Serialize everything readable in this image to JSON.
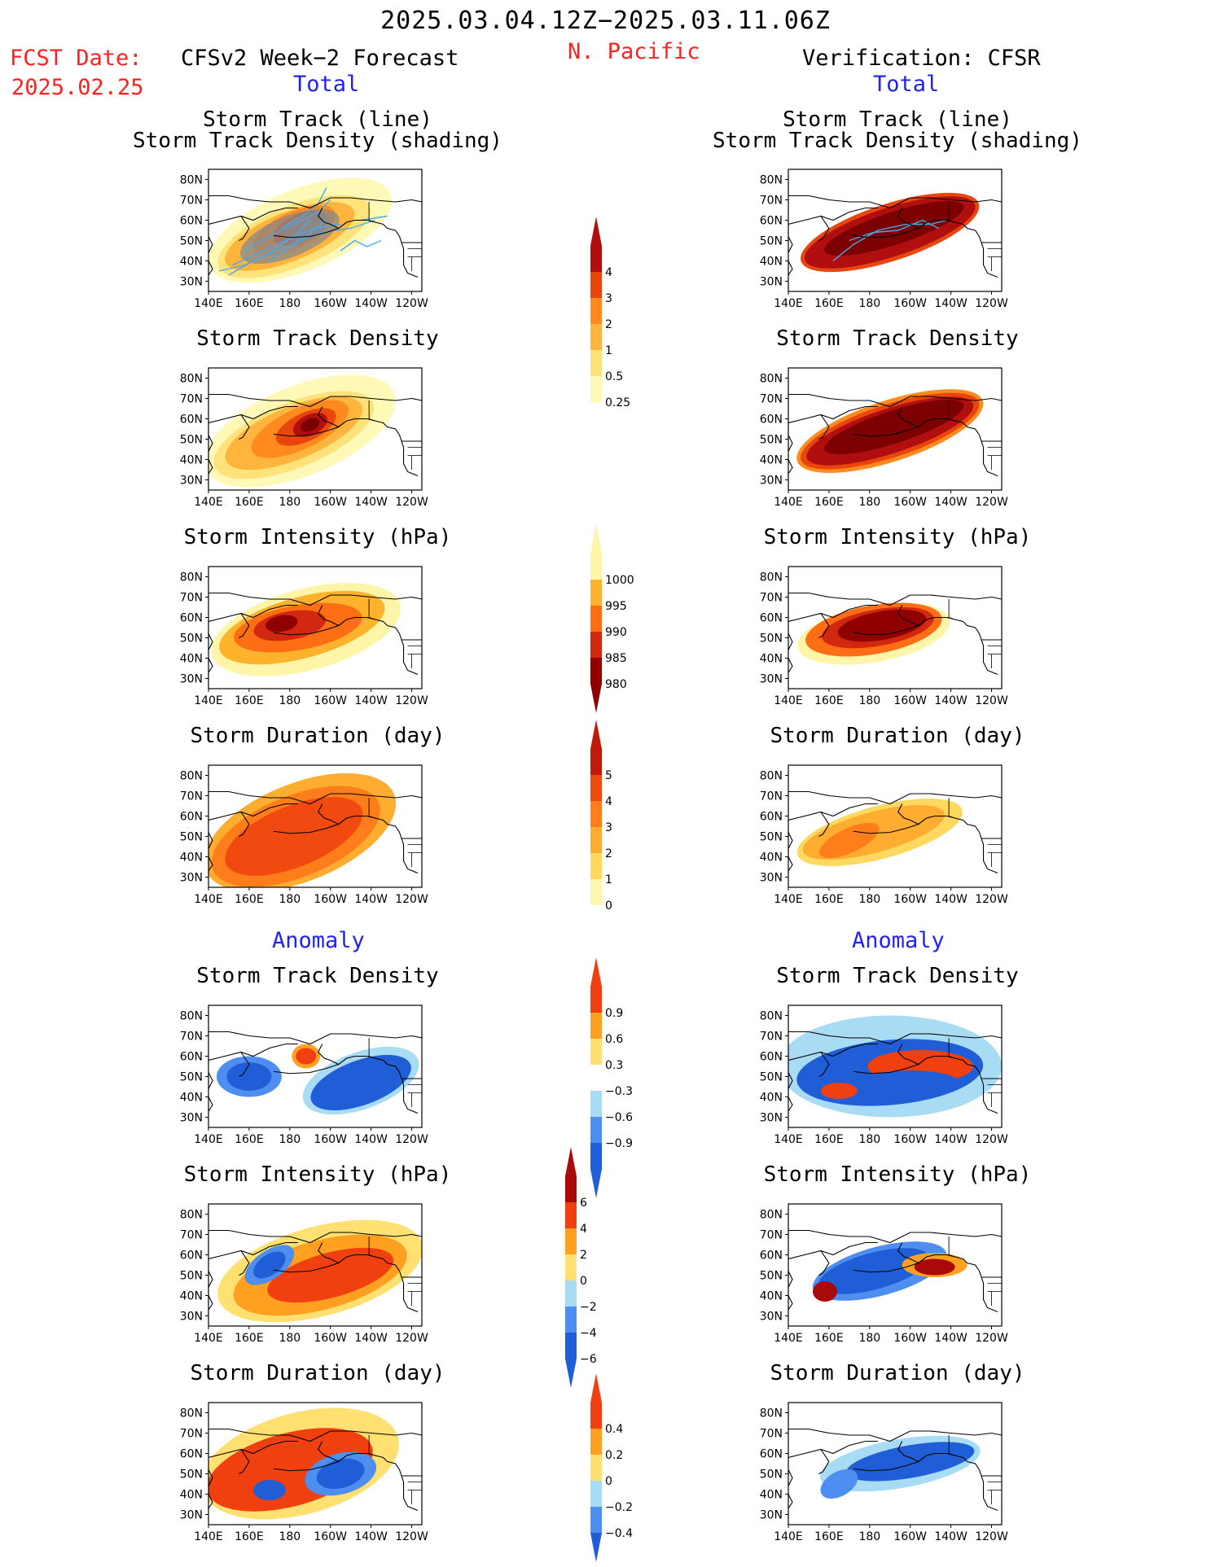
{
  "header": {
    "date_range": "2025.03.04.12Z−2025.03.11.06Z",
    "fcst_label": "FCST Date:",
    "fcst_date": "2025.02.25",
    "left_title": "CFSv2 Week−2 Forecast",
    "region": "N. Pacific",
    "right_title": "Verification: CFSR",
    "total_left": "Total",
    "total_right": "Total",
    "anomaly_left": "Anomaly",
    "anomaly_right": "Anomaly"
  },
  "axes": {
    "lat_ticks": [
      "80N",
      "70N",
      "60N",
      "50N",
      "40N",
      "30N"
    ],
    "lon_ticks": [
      "140E",
      "160E",
      "180",
      "160W",
      "140W",
      "120W"
    ]
  },
  "colors": {
    "density": [
      "#fff9b8",
      "#ffe27a",
      "#ffb43c",
      "#ff8a1e",
      "#e8460c",
      "#b10f0f",
      "#7d0000"
    ],
    "intensity": [
      "#fff5a8",
      "#ffb22c",
      "#ff6e14",
      "#d22810",
      "#900000"
    ],
    "duration": [
      "#fff6b0",
      "#ffd860",
      "#ffad30",
      "#ff7d1a",
      "#f04a10",
      "#c01a0a"
    ],
    "anomaly": [
      "#1f5ed6",
      "#4d8ef0",
      "#a8dcf5",
      "#ffffff",
      "#ffe070",
      "#ffa020",
      "#f04010",
      "#aa0a0a"
    ],
    "track_line": "#4aa8e8",
    "track_shade": "#8a8a8a"
  },
  "panels": {
    "top_left": {
      "title1": "Storm Track (line)",
      "title2": "Storm Track Density (shading)"
    },
    "top_right": {
      "title1": "Storm Track (line)",
      "title2": "Storm Track Density (shading)"
    },
    "density_left": {
      "title": "Storm Track Density"
    },
    "density_right": {
      "title": "Storm Track Density"
    },
    "intensity_left": {
      "title": "Storm Intensity (hPa)"
    },
    "intensity_right": {
      "title": "Storm Intensity (hPa)"
    },
    "duration_left": {
      "title": "Storm Duration (day)"
    },
    "duration_right": {
      "title": "Storm Duration (day)"
    },
    "a_density_left": {
      "title": "Storm Track Density"
    },
    "a_density_right": {
      "title": "Storm Track Density"
    },
    "a_intensity_left": {
      "title": "Storm Intensity (hPa)"
    },
    "a_intensity_right": {
      "title": "Storm Intensity (hPa)"
    },
    "a_duration_left": {
      "title": "Storm Duration (day)"
    },
    "a_duration_right": {
      "title": "Storm Duration (day)"
    }
  },
  "colorbars": {
    "density": {
      "labels": [
        "4",
        "3",
        "2",
        "1",
        "0.5",
        "0.25"
      ]
    },
    "intensity": {
      "labels": [
        "1000",
        "995",
        "990",
        "985",
        "980"
      ]
    },
    "duration": {
      "labels": [
        "5",
        "4",
        "3",
        "2",
        "1",
        "0"
      ]
    },
    "a_density": {
      "labels": [
        "0.9",
        "0.6",
        "0.3",
        "−0.3",
        "−0.6",
        "−0.9"
      ]
    },
    "a_intensity": {
      "labels": [
        "6",
        "4",
        "2",
        "0",
        "−2",
        "−4",
        "−6"
      ]
    },
    "a_duration": {
      "labels": [
        "0.4",
        "0.2",
        "0",
        "−0.2",
        "−0.4"
      ]
    }
  },
  "chart_data": [
    {
      "type": "heatmap",
      "title": "Storm Track (line) / Storm Track Density (shading)",
      "side": "CFSv2 Week−2 Forecast",
      "levels": [
        0.25,
        0.5,
        1,
        2,
        3,
        4
      ],
      "xlim": [
        "140E",
        "120W"
      ],
      "ylim": [
        "25N",
        "85N"
      ]
    },
    {
      "type": "heatmap",
      "title": "Storm Track (line) / Storm Track Density (shading)",
      "side": "Verification: CFSR",
      "levels": [
        0.25,
        0.5,
        1,
        2,
        3,
        4
      ]
    },
    {
      "type": "heatmap",
      "title": "Storm Track Density",
      "side": "CFSv2 Week−2 Forecast",
      "levels": [
        0.25,
        0.5,
        1,
        2,
        3,
        4
      ]
    },
    {
      "type": "heatmap",
      "title": "Storm Track Density",
      "side": "Verification: CFSR",
      "levels": [
        0.25,
        0.5,
        1,
        2,
        3,
        4
      ]
    },
    {
      "type": "heatmap",
      "title": "Storm Intensity (hPa)",
      "side": "CFSv2 Week−2 Forecast",
      "levels": [
        980,
        985,
        990,
        995,
        1000
      ]
    },
    {
      "type": "heatmap",
      "title": "Storm Intensity (hPa)",
      "side": "Verification: CFSR",
      "levels": [
        980,
        985,
        990,
        995,
        1000
      ]
    },
    {
      "type": "heatmap",
      "title": "Storm Duration (day)",
      "side": "CFSv2 Week−2 Forecast",
      "levels": [
        0,
        1,
        2,
        3,
        4,
        5
      ]
    },
    {
      "type": "heatmap",
      "title": "Storm Duration (day)",
      "side": "Verification: CFSR",
      "levels": [
        0,
        1,
        2,
        3,
        4,
        5
      ]
    },
    {
      "type": "heatmap",
      "title": "Storm Track Density",
      "anomaly": true,
      "side": "CFSv2 Week−2 Forecast",
      "levels": [
        -0.9,
        -0.6,
        -0.3,
        0.3,
        0.6,
        0.9
      ]
    },
    {
      "type": "heatmap",
      "title": "Storm Track Density",
      "anomaly": true,
      "side": "Verification: CFSR",
      "levels": [
        -0.9,
        -0.6,
        -0.3,
        0.3,
        0.6,
        0.9
      ]
    },
    {
      "type": "heatmap",
      "title": "Storm Intensity (hPa)",
      "anomaly": true,
      "side": "CFSv2 Week−2 Forecast",
      "levels": [
        -6,
        -4,
        -2,
        0,
        2,
        4,
        6
      ]
    },
    {
      "type": "heatmap",
      "title": "Storm Intensity (hPa)",
      "anomaly": true,
      "side": "Verification: CFSR",
      "levels": [
        -6,
        -4,
        -2,
        0,
        2,
        4,
        6
      ]
    },
    {
      "type": "heatmap",
      "title": "Storm Duration (day)",
      "anomaly": true,
      "side": "CFSv2 Week−2 Forecast",
      "levels": [
        -0.4,
        -0.2,
        0,
        0.2,
        0.4
      ]
    },
    {
      "type": "heatmap",
      "title": "Storm Duration (day)",
      "anomaly": true,
      "side": "Verification: CFSR",
      "levels": [
        -0.4,
        -0.2,
        0,
        0.2,
        0.4
      ]
    }
  ]
}
